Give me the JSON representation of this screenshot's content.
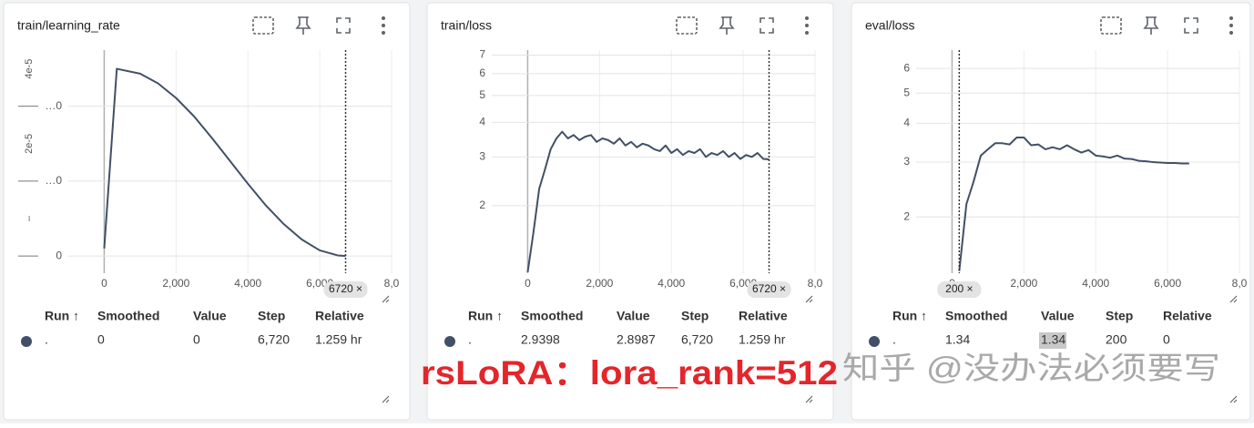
{
  "chart_data": [
    {
      "type": "line",
      "title": "train/learning_rate",
      "x": [
        0,
        350,
        1000,
        1500,
        2000,
        2500,
        3000,
        3500,
        4000,
        4500,
        5000,
        5500,
        6000,
        6500,
        6720
      ],
      "series": [
        {
          "color": "#425066",
          "values": [
            2e-06,
            5e-05,
            4.87e-05,
            4.61e-05,
            4.22e-05,
            3.73e-05,
            3.15e-05,
            2.54e-05,
            1.93e-05,
            1.35e-05,
            8.5e-06,
            4.4e-06,
            1.5e-06,
            1.5e-07,
            0
          ]
        }
      ],
      "xlim": [
        -1000,
        8000
      ],
      "xticks": [
        0,
        {
          "value": 2000,
          "label": "2,000"
        },
        {
          "value": 4000,
          "label": "4,000"
        },
        {
          "value": 6000,
          "label": "6,000"
        },
        {
          "value": 8000,
          "label": "8,0"
        }
      ],
      "ylim": [
        -4.6e-06,
        5.5e-05
      ],
      "yticks": [
        {
          "value": 4e-05,
          "label": "…0"
        },
        {
          "value": 2e-05,
          "label": "…0"
        },
        0
      ],
      "yticks_rotated": [
        {
          "value": 4e-05,
          "label": "4e-5"
        },
        {
          "value": 2e-05,
          "label": "2e-5"
        },
        {
          "value": 0,
          "label": "–"
        }
      ],
      "log_y": false,
      "grid": true,
      "marker": {
        "value": 6720,
        "label": "6720 ×"
      }
    },
    {
      "type": "line",
      "title": "train/loss",
      "x": [
        0,
        160,
        320,
        480,
        640,
        800,
        960,
        1120,
        1280,
        1440,
        1600,
        1760,
        1920,
        2080,
        2240,
        2400,
        2560,
        2720,
        2880,
        3040,
        3200,
        3360,
        3520,
        3680,
        3840,
        4000,
        4160,
        4320,
        4480,
        4640,
        4800,
        4960,
        5120,
        5280,
        5440,
        5600,
        5760,
        5920,
        6080,
        6240,
        6400,
        6560,
        6720
      ],
      "series": [
        {
          "color": "#425066",
          "values": [
            1.15,
            1.6,
            2.3,
            2.7,
            3.2,
            3.5,
            3.7,
            3.5,
            3.6,
            3.45,
            3.55,
            3.6,
            3.4,
            3.5,
            3.45,
            3.35,
            3.5,
            3.3,
            3.4,
            3.25,
            3.35,
            3.3,
            3.2,
            3.15,
            3.3,
            3.1,
            3.2,
            3.05,
            3.15,
            3.1,
            3.2,
            3.0,
            3.1,
            3.05,
            3.15,
            3.0,
            3.1,
            2.95,
            3.05,
            3.0,
            3.1,
            2.95,
            2.94
          ]
        }
      ],
      "xlim": [
        -1000,
        8000
      ],
      "xticks": [
        0,
        {
          "value": 2000,
          "label": "2,000"
        },
        {
          "value": 4000,
          "label": "4,000"
        },
        {
          "value": 6000,
          "label": "6,000"
        },
        {
          "value": 8000,
          "label": "8,0"
        }
      ],
      "ylim": [
        1.14,
        7.3
      ],
      "yticks": [
        2,
        3,
        4,
        5,
        6,
        7
      ],
      "log_y": true,
      "grid": true,
      "marker": {
        "value": 6720,
        "label": "6720 ×"
      }
    },
    {
      "type": "line",
      "title": "eval/loss",
      "x": [
        200,
        400,
        600,
        800,
        1000,
        1200,
        1400,
        1600,
        1800,
        2000,
        2200,
        2400,
        2600,
        2800,
        3000,
        3200,
        3400,
        3600,
        3800,
        4000,
        4200,
        4400,
        4600,
        4800,
        5000,
        5200,
        5400,
        5600,
        5800,
        6000,
        6200,
        6400,
        6600
      ],
      "series": [
        {
          "color": "#425066",
          "values": [
            1.34,
            2.2,
            2.6,
            3.15,
            3.3,
            3.45,
            3.45,
            3.42,
            3.6,
            3.6,
            3.4,
            3.42,
            3.3,
            3.35,
            3.3,
            3.4,
            3.3,
            3.22,
            3.28,
            3.15,
            3.13,
            3.1,
            3.15,
            3.08,
            3.07,
            3.03,
            3.02,
            3.0,
            2.99,
            2.98,
            2.98,
            2.97,
            2.97
          ]
        }
      ],
      "xlim": [
        -1000,
        8000
      ],
      "xticks": [
        0,
        {
          "value": 2000,
          "label": "2,000"
        },
        {
          "value": 4000,
          "label": "4,000"
        },
        {
          "value": 6000,
          "label": "6,000"
        },
        {
          "value": 8000,
          "label": "8,0"
        }
      ],
      "ylim": [
        1.32,
        6.87
      ],
      "yticks": [
        2,
        3,
        4,
        5,
        6
      ],
      "log_y": true,
      "grid": true,
      "marker": {
        "value": 200,
        "label": "200 ×"
      }
    }
  ],
  "tables": [
    {
      "headers": [
        "Run ↑",
        "Smoothed",
        "Value",
        "Step",
        "Relative"
      ],
      "rows": [
        [
          ".",
          "0",
          "0",
          "6,720",
          "1.259 hr"
        ]
      ]
    },
    {
      "headers": [
        "Run ↑",
        "Smoothed",
        "Value",
        "Step",
        "Relative"
      ],
      "rows": [
        [
          ".",
          "2.9398",
          "2.8987",
          "6,720",
          "1.259 hr"
        ]
      ]
    },
    {
      "headers": [
        "Run ↑",
        "Smoothed",
        "Value",
        "Step",
        "Relative"
      ],
      "rows": [
        [
          ".",
          "1.34",
          "1.34",
          "200",
          "0"
        ]
      ],
      "highlighted_column": "Value"
    }
  ],
  "annotation": "rsLoRA：lora_rank=512",
  "watermark": "知乎 @没办法必须要写"
}
